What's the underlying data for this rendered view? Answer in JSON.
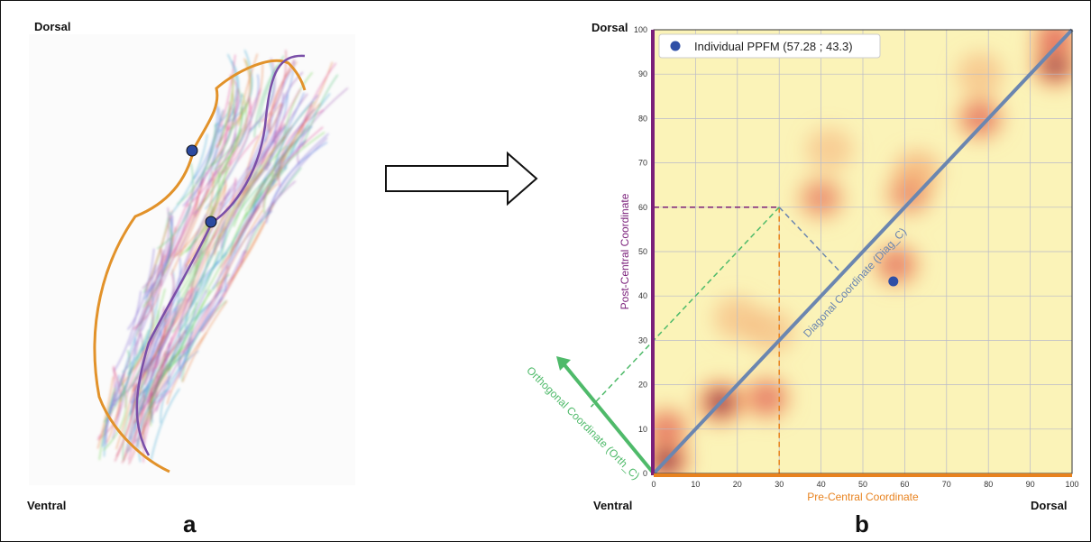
{
  "panel_a": {
    "corner_top": "Dorsal",
    "corner_bottom": "Ventral",
    "letter": "a"
  },
  "panel_b": {
    "corner_top_left": "Dorsal",
    "corner_bottom_left": "Ventral",
    "corner_bottom_right": "Dorsal",
    "letter": "b",
    "diagonal_label": "Diagonal Coordinate (Diag_C)",
    "orthogonal_label": "Orthogonal Coordinate (Orth_C)"
  },
  "colors": {
    "pre_central": "#e8821e",
    "post_central": "#7a1f7a",
    "diagonal": "#6b86b0",
    "orthogonal": "#4fba6a",
    "heat_bg": "#fbf3b8",
    "point": "#2f4fa6"
  },
  "chart_data": {
    "type": "heatmap",
    "xlabel": "Pre-Central Coordinate",
    "ylabel": "Post-Central Coordinate",
    "xlim": [
      0,
      100
    ],
    "ylim": [
      0,
      100
    ],
    "xticks": [
      0,
      10,
      20,
      30,
      40,
      50,
      60,
      70,
      80,
      90,
      100
    ],
    "yticks": [
      0,
      10,
      20,
      30,
      40,
      50,
      60,
      70,
      80,
      90,
      100
    ],
    "grid": true,
    "legend_position": "top-left",
    "legend_label": "Individual PPFM  (57.28 ; 43.3)",
    "point": {
      "x": 57.28,
      "y": 43.3
    },
    "example_point": {
      "x": 30,
      "y": 60
    },
    "density_blobs": [
      {
        "x": 3,
        "y": 3,
        "w": 1.0
      },
      {
        "x": 3,
        "y": 10,
        "w": 0.6
      },
      {
        "x": 16,
        "y": 16,
        "w": 0.9
      },
      {
        "x": 27,
        "y": 17,
        "w": 0.6
      },
      {
        "x": 20,
        "y": 35,
        "w": 0.2
      },
      {
        "x": 28,
        "y": 32,
        "w": 0.2
      },
      {
        "x": 40,
        "y": 62,
        "w": 0.45
      },
      {
        "x": 58,
        "y": 47,
        "w": 0.55
      },
      {
        "x": 61,
        "y": 63,
        "w": 0.45
      },
      {
        "x": 63,
        "y": 68,
        "w": 0.35
      },
      {
        "x": 78,
        "y": 80,
        "w": 0.6
      },
      {
        "x": 96,
        "y": 92,
        "w": 0.9
      },
      {
        "x": 96,
        "y": 98,
        "w": 0.7
      },
      {
        "x": 42,
        "y": 73,
        "w": 0.15
      },
      {
        "x": 78,
        "y": 90,
        "w": 0.2
      }
    ]
  }
}
